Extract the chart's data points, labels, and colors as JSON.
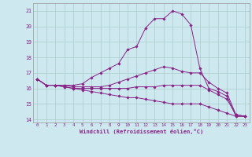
{
  "xlabel": "Windchill (Refroidissement éolien,°C)",
  "xlim": [
    -0.5,
    23.5
  ],
  "ylim": [
    13.8,
    21.5
  ],
  "yticks": [
    14,
    15,
    16,
    17,
    18,
    19,
    20,
    21
  ],
  "xticks": [
    0,
    1,
    2,
    3,
    4,
    5,
    6,
    7,
    8,
    9,
    10,
    11,
    12,
    13,
    14,
    15,
    16,
    17,
    18,
    19,
    20,
    21,
    22,
    23
  ],
  "bg_color": "#cde8ee",
  "line_color": "#882288",
  "grid_color": "#aacccc",
  "series": {
    "upper": [
      16.6,
      16.2,
      16.2,
      16.2,
      16.2,
      16.3,
      16.7,
      17.0,
      17.3,
      17.6,
      18.5,
      18.7,
      19.9,
      20.5,
      20.5,
      21.0,
      20.8,
      20.1,
      17.3,
      16.0,
      15.8,
      15.5,
      14.2,
      14.2
    ],
    "mid_upper": [
      16.6,
      16.2,
      16.2,
      16.2,
      16.1,
      16.1,
      16.1,
      16.1,
      16.2,
      16.4,
      16.6,
      16.8,
      17.0,
      17.2,
      17.4,
      17.3,
      17.1,
      17.0,
      17.0,
      16.4,
      16.0,
      15.7,
      14.3,
      14.2
    ],
    "mid_lower": [
      16.6,
      16.2,
      16.2,
      16.1,
      16.0,
      16.0,
      16.0,
      16.0,
      16.0,
      16.0,
      16.0,
      16.1,
      16.1,
      16.1,
      16.2,
      16.2,
      16.2,
      16.2,
      16.2,
      15.9,
      15.6,
      15.3,
      14.3,
      14.2
    ],
    "lower": [
      16.6,
      16.2,
      16.2,
      16.1,
      16.0,
      15.9,
      15.8,
      15.7,
      15.6,
      15.5,
      15.4,
      15.4,
      15.3,
      15.2,
      15.1,
      15.0,
      15.0,
      15.0,
      15.0,
      14.8,
      14.6,
      14.4,
      14.2,
      14.2
    ]
  }
}
